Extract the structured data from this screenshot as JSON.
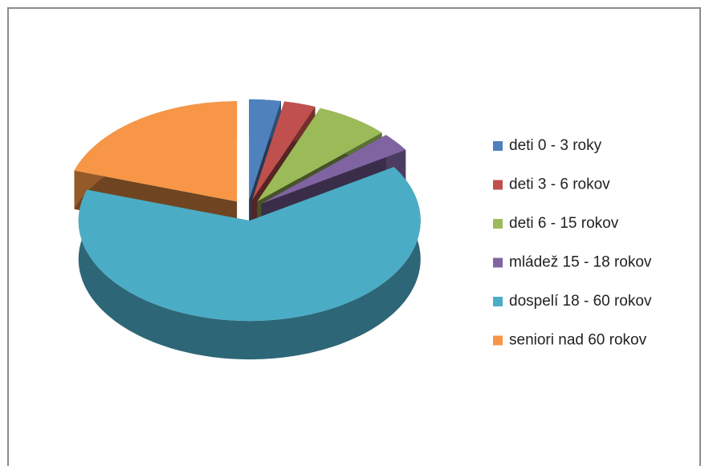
{
  "chart_data": {
    "type": "pie",
    "three_d": true,
    "exploded": true,
    "categories": [
      "deti 0 - 3 roky",
      "deti 3 - 6 rokov",
      "deti 6 - 15 rokov",
      "mládež 15 - 18 rokov",
      "dospelí 18 - 60 rokov",
      "seniori nad 60 rokov"
    ],
    "values": [
      3,
      3,
      7,
      3,
      64,
      20
    ],
    "colors": [
      "#4f81bd",
      "#c0504d",
      "#9bbb59",
      "#8064a2",
      "#4bacc6",
      "#f79646"
    ],
    "legend": "right"
  }
}
